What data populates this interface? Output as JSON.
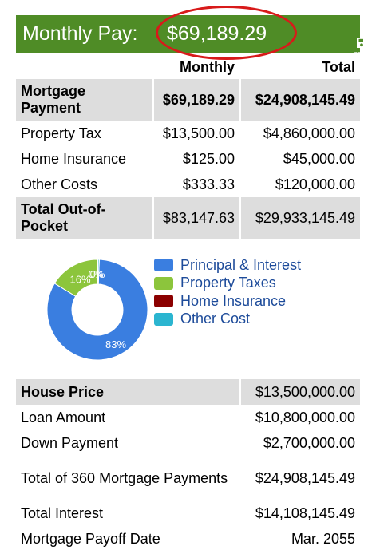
{
  "header": {
    "title": "Monthly Pay:",
    "amount": "$69,189.29",
    "save_label": "save",
    "bg_color": "#4f8c26",
    "highlight_color": "#d81a1a"
  },
  "summary": {
    "col_monthly": "Monthly",
    "col_total": "Total",
    "rows": [
      {
        "label": "Mortgage Payment",
        "monthly": "$69,189.29",
        "total": "$24,908,145.49"
      },
      {
        "label": "Property Tax",
        "monthly": "$13,500.00",
        "total": "$4,860,000.00"
      },
      {
        "label": "Home Insurance",
        "monthly": "$125.00",
        "total": "$45,000.00"
      },
      {
        "label": "Other Costs",
        "monthly": "$333.33",
        "total": "$120,000.00"
      },
      {
        "label": "Total Out-of-Pocket",
        "monthly": "$83,147.63",
        "total": "$29,933,145.49"
      }
    ]
  },
  "chart_data": {
    "type": "pie",
    "donut": true,
    "categories": [
      "Principal & Interest",
      "Property Taxes",
      "Home Insurance",
      "Other Cost"
    ],
    "values": [
      83.2,
      16.2,
      0.2,
      0.4
    ],
    "data_labels": [
      "83%",
      "16%",
      "0%",
      "0%"
    ],
    "colors": [
      "#3a7ee0",
      "#8cc53c",
      "#8b0000",
      "#2bb5d0"
    ],
    "legend_placement": "right"
  },
  "details": {
    "rows": [
      {
        "label": "House Price",
        "value": "$13,500,000.00"
      },
      {
        "label": "Loan Amount",
        "value": "$10,800,000.00"
      },
      {
        "label": "Down Payment",
        "value": "$2,700,000.00"
      },
      {
        "label": "Total of 360 Mortgage Payments",
        "value": "$24,908,145.49"
      },
      {
        "label": "Total Interest",
        "value": "$14,108,145.49"
      },
      {
        "label": "Mortgage Payoff Date",
        "value": "Mar. 2055"
      }
    ]
  }
}
